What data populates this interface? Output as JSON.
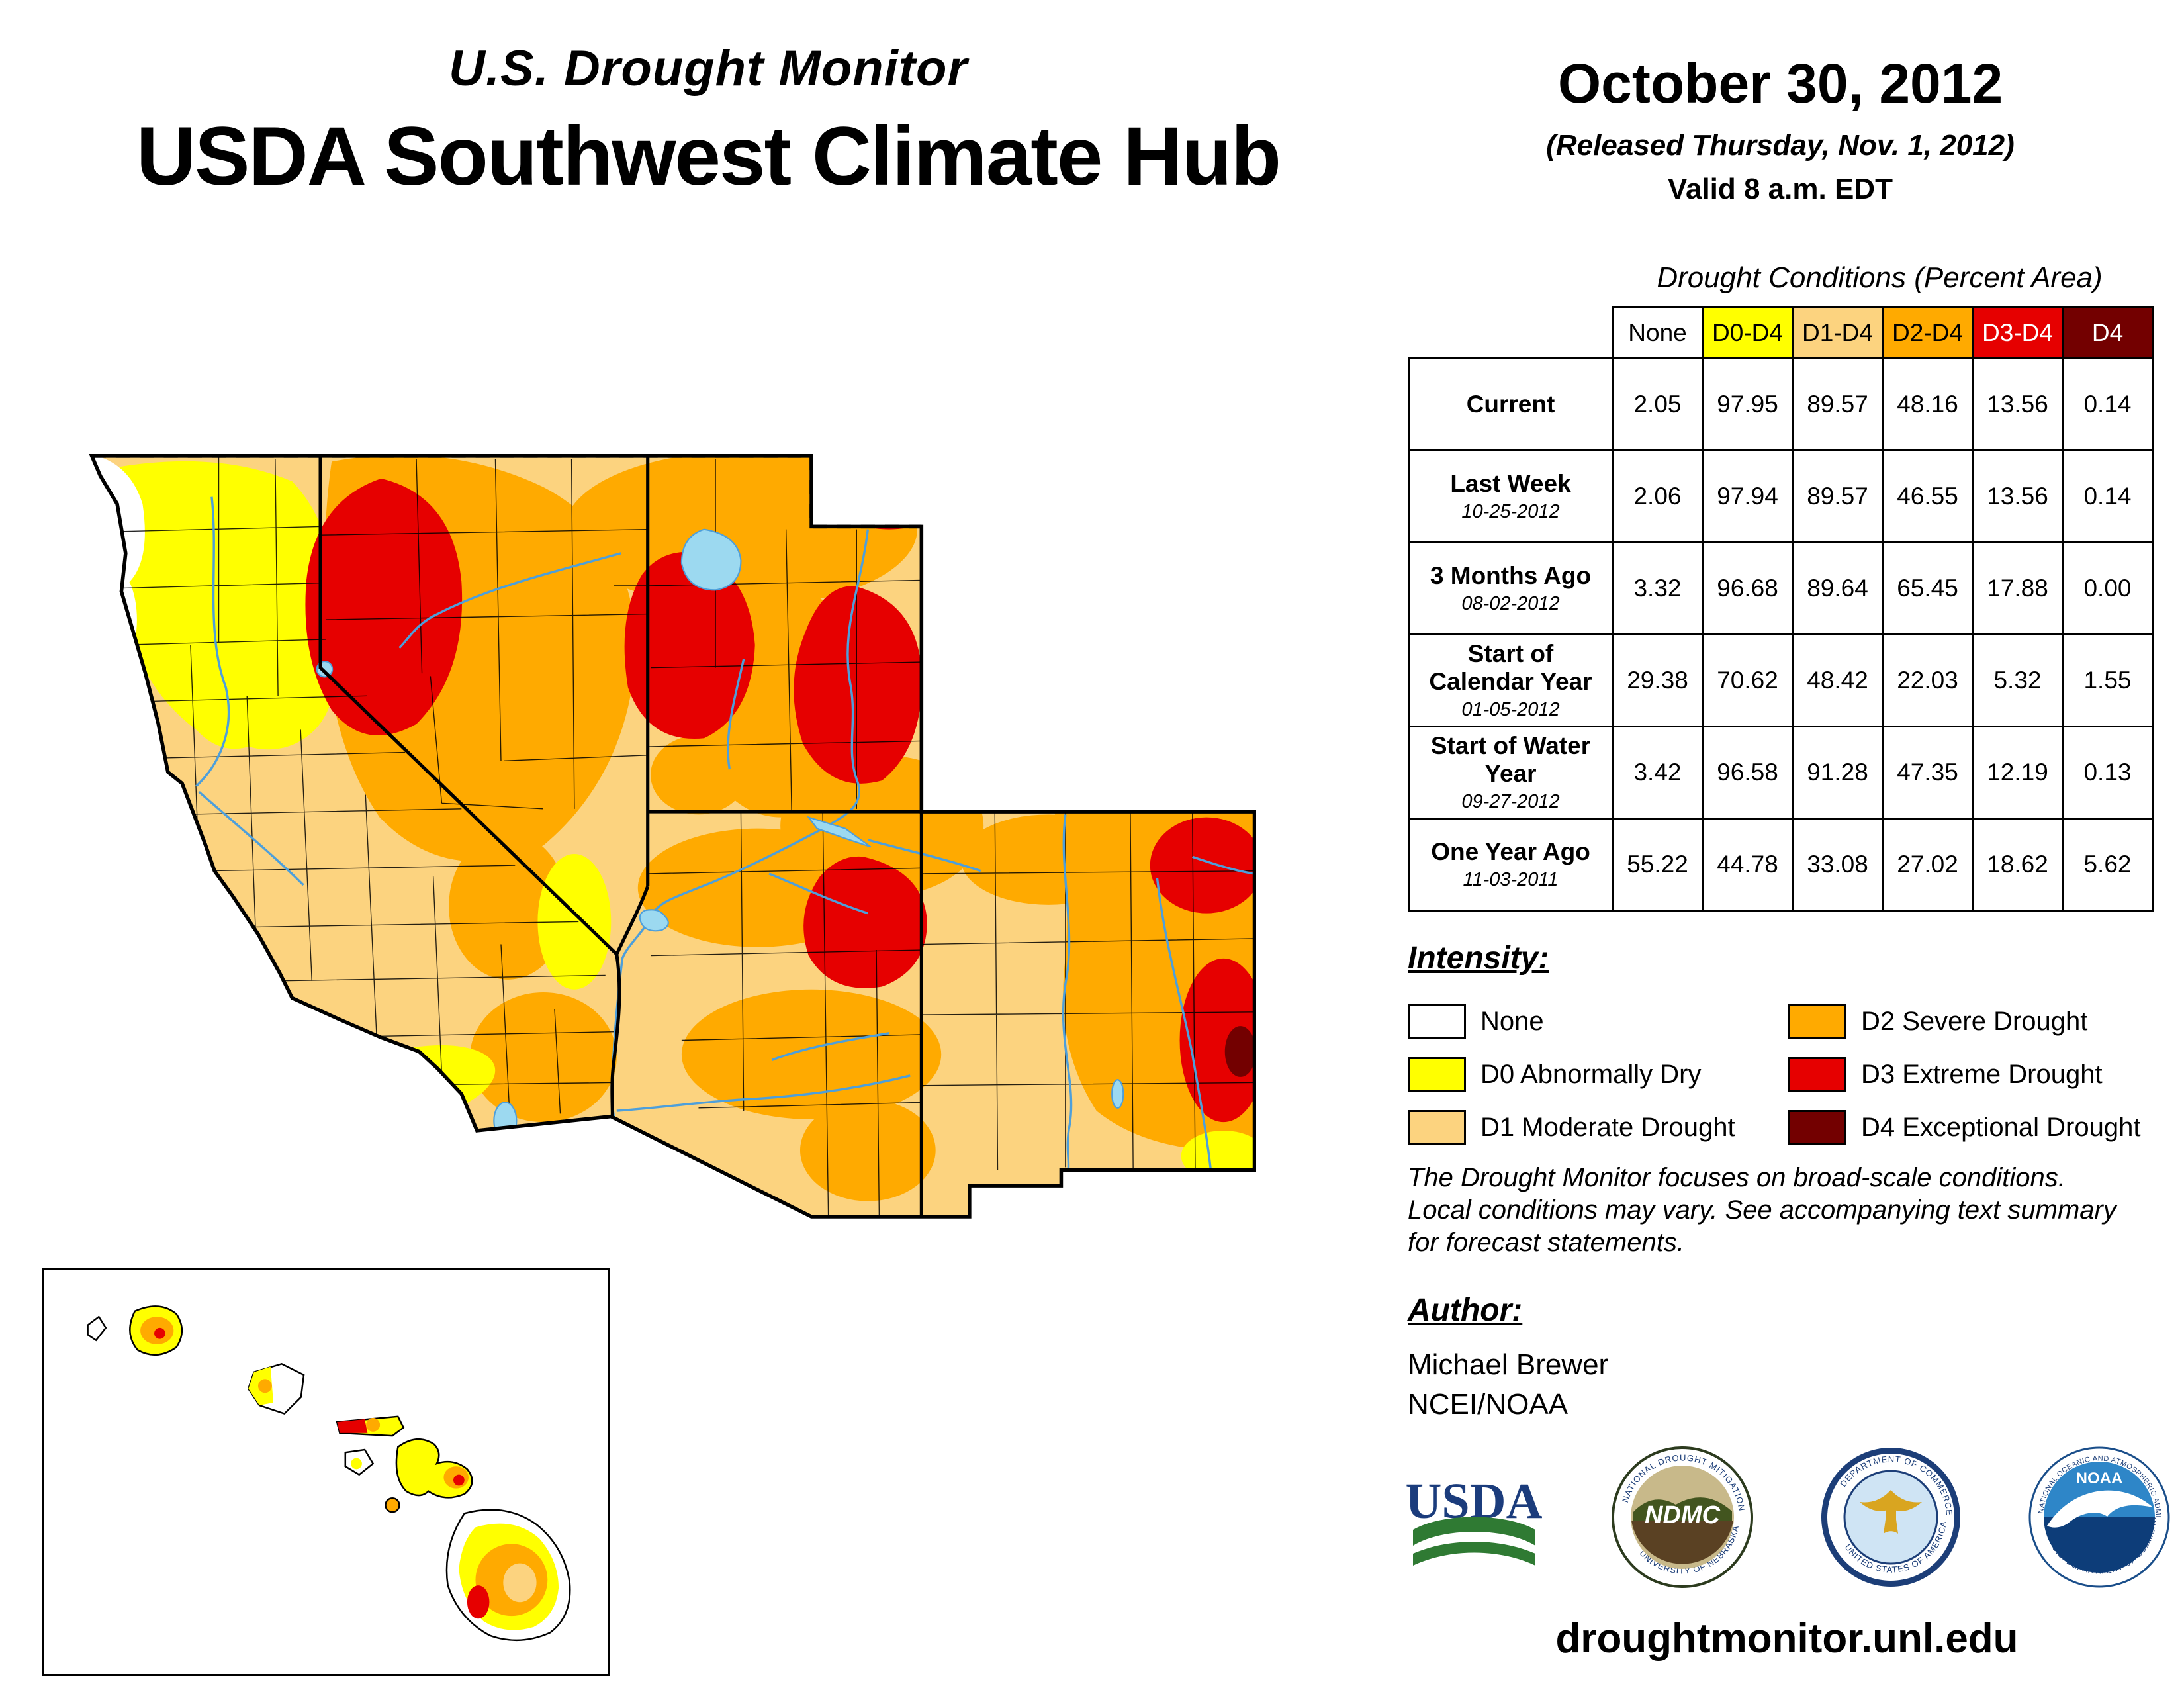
{
  "header": {
    "title_small": "U.S. Drought Monitor",
    "title_large": "USDA Southwest Climate Hub",
    "date": "October 30, 2012",
    "released": "(Released Thursday, Nov. 1, 2012)",
    "valid": "Valid 8 a.m. EDT"
  },
  "table": {
    "title": "Drought Conditions (Percent Area)",
    "columns": [
      "None",
      "D0-D4",
      "D1-D4",
      "D2-D4",
      "D3-D4",
      "D4"
    ],
    "column_colors": [
      "#FFFFFF",
      "#FFFF00",
      "#FCD37F",
      "#FFAA00",
      "#E60000",
      "#730000"
    ],
    "column_text_colors": [
      "#000000",
      "#000000",
      "#000000",
      "#000000",
      "#FFFFFF",
      "#FFFFFF"
    ],
    "rows": [
      {
        "label": "Current",
        "date": "",
        "values": [
          "2.05",
          "97.95",
          "89.57",
          "48.16",
          "13.56",
          "0.14"
        ]
      },
      {
        "label": "Last Week",
        "date": "10-25-2012",
        "values": [
          "2.06",
          "97.94",
          "89.57",
          "46.55",
          "13.56",
          "0.14"
        ]
      },
      {
        "label": "3 Months Ago",
        "date": "08-02-2012",
        "values": [
          "3.32",
          "96.68",
          "89.64",
          "65.45",
          "17.88",
          "0.00"
        ]
      },
      {
        "label": "Start of Calendar Year",
        "date": "01-05-2012",
        "values": [
          "29.38",
          "70.62",
          "48.42",
          "22.03",
          "5.32",
          "1.55"
        ]
      },
      {
        "label": "Start of Water Year",
        "date": "09-27-2012",
        "values": [
          "3.42",
          "96.58",
          "91.28",
          "47.35",
          "12.19",
          "0.13"
        ]
      },
      {
        "label": "One Year Ago",
        "date": "11-03-2011",
        "values": [
          "55.22",
          "44.78",
          "33.08",
          "27.02",
          "18.62",
          "5.62"
        ]
      }
    ]
  },
  "legend": {
    "title": "Intensity:",
    "items": [
      {
        "code": "none",
        "label": "None",
        "color": "#FFFFFF"
      },
      {
        "code": "d0",
        "label": "D0 Abnormally Dry",
        "color": "#FFFF00"
      },
      {
        "code": "d1",
        "label": "D1 Moderate Drought",
        "color": "#FCD37F"
      },
      {
        "code": "d2",
        "label": "D2 Severe Drought",
        "color": "#FFAA00"
      },
      {
        "code": "d3",
        "label": "D3 Extreme Drought",
        "color": "#E60000"
      },
      {
        "code": "d4",
        "label": "D4 Exceptional Drought",
        "color": "#730000"
      }
    ]
  },
  "disclaimer": {
    "lines": [
      "The Drought Monitor focuses on broad-scale conditions.",
      "Local conditions may vary. See accompanying text summary",
      "for forecast statements."
    ]
  },
  "author": {
    "title": "Author:",
    "name": "Michael Brewer",
    "org": "NCEI/NOAA"
  },
  "logos": {
    "usda": {
      "text": "USDA"
    },
    "ndmc": {
      "text": "NDMC",
      "ring_top": "NATIONAL DROUGHT MITIGATION CENTER",
      "ring_bottom": "UNIVERSITY OF NEBRASKA"
    },
    "doc": {
      "ring_top": "DEPARTMENT OF COMMERCE",
      "ring_bottom": "UNITED STATES OF AMERICA"
    },
    "noaa": {
      "text": "NOAA",
      "ring_top": "NATIONAL OCEANIC AND ATMOSPHERIC ADMINISTRATION",
      "ring_bottom": "U.S. DEPARTMENT OF COMMERCE"
    }
  },
  "footer": {
    "url": "droughtmonitor.unl.edu"
  },
  "palette": {
    "none": "#FFFFFF",
    "d0": "#FFFF00",
    "d1": "#FCD37F",
    "d2": "#FFAA00",
    "d3": "#E60000",
    "d4": "#730000",
    "water": "#9CD9F0",
    "river": "#4D9FDB"
  }
}
